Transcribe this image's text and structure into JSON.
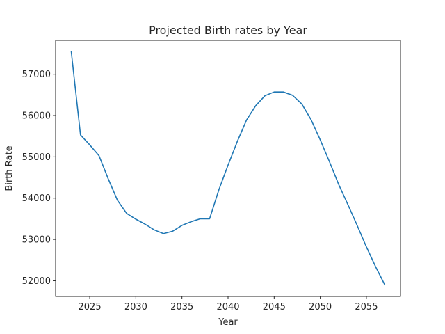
{
  "chart_data": {
    "type": "line",
    "title": "Projected Birth rates by Year",
    "xlabel": "Year",
    "ylabel": "Birth Rate",
    "xlim": [
      2021.3,
      2058.7
    ],
    "ylim": [
      51620,
      57820
    ],
    "xticks": [
      2025,
      2030,
      2035,
      2040,
      2045,
      2050,
      2055
    ],
    "yticks": [
      52000,
      53000,
      54000,
      55000,
      56000,
      57000
    ],
    "grid": false,
    "series": [
      {
        "color": "#1f77b4",
        "x": [
          2023,
          2024,
          2025,
          2026,
          2027,
          2028,
          2029,
          2030,
          2031,
          2032,
          2033,
          2034,
          2035,
          2036,
          2037,
          2038,
          2039,
          2040,
          2041,
          2042,
          2043,
          2044,
          2045,
          2046,
          2047,
          2048,
          2049,
          2050,
          2051,
          2052,
          2053,
          2054,
          2055,
          2056,
          2057
        ],
        "y": [
          57540,
          55530,
          55290,
          55030,
          54470,
          53950,
          53630,
          53490,
          53370,
          53230,
          53140,
          53200,
          53340,
          53430,
          53500,
          53500,
          54200,
          54800,
          55370,
          55890,
          56240,
          56480,
          56570,
          56570,
          56490,
          56280,
          55900,
          55410,
          54880,
          54330,
          53840,
          53340,
          52820,
          52340,
          51900
        ]
      }
    ]
  }
}
